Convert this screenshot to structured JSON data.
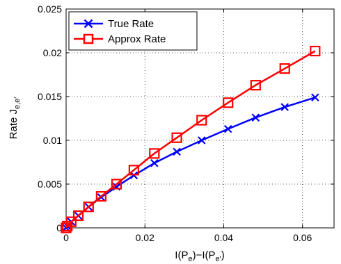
{
  "chart_data": {
    "type": "line",
    "xlim": [
      0,
      0.068
    ],
    "ylim": [
      0,
      0.025
    ],
    "grid": true,
    "legend_position": "top-left",
    "x_ticks": [
      "0",
      "0.02",
      "0.04",
      "0.06"
    ],
    "x_tick_values": [
      0,
      0.02,
      0.04,
      0.06
    ],
    "y_ticks": [
      "0",
      "0.005",
      "0.01",
      "0.015",
      "0.02",
      "0.025"
    ],
    "y_tick_values": [
      0,
      0.005,
      0.01,
      0.015,
      0.02,
      0.025
    ],
    "xlabel": {
      "main": "I(P",
      "sub1": "e",
      "mid": ")−I(P",
      "sub2": "e′",
      "end": ")"
    },
    "ylabel": {
      "main": "Rate J",
      "sub": "e,e′"
    },
    "series": [
      {
        "name": "True Rate",
        "color": "#0000ff",
        "marker": "x",
        "x": [
          0,
          0.0003,
          0.0013,
          0.0031,
          0.0057,
          0.0089,
          0.0128,
          0.0172,
          0.0224,
          0.0281,
          0.0344,
          0.0411,
          0.0481,
          0.0555,
          0.0632
        ],
        "y": [
          0,
          0.0002,
          0.0007,
          0.0014,
          0.0024,
          0.0035,
          0.0047,
          0.006,
          0.0074,
          0.0087,
          0.01,
          0.0113,
          0.0126,
          0.0138,
          0.0149
        ]
      },
      {
        "name": "Approx Rate",
        "color": "#ff0000",
        "marker": "square",
        "x": [
          0,
          0.0003,
          0.0013,
          0.0031,
          0.0057,
          0.0089,
          0.0128,
          0.0172,
          0.0224,
          0.0281,
          0.0344,
          0.0411,
          0.0481,
          0.0555,
          0.0632
        ],
        "y": [
          0,
          0.0002,
          0.0007,
          0.0014,
          0.0024,
          0.0036,
          0.005,
          0.0066,
          0.0085,
          0.0103,
          0.0123,
          0.0143,
          0.0163,
          0.0182,
          0.0202
        ]
      }
    ]
  }
}
